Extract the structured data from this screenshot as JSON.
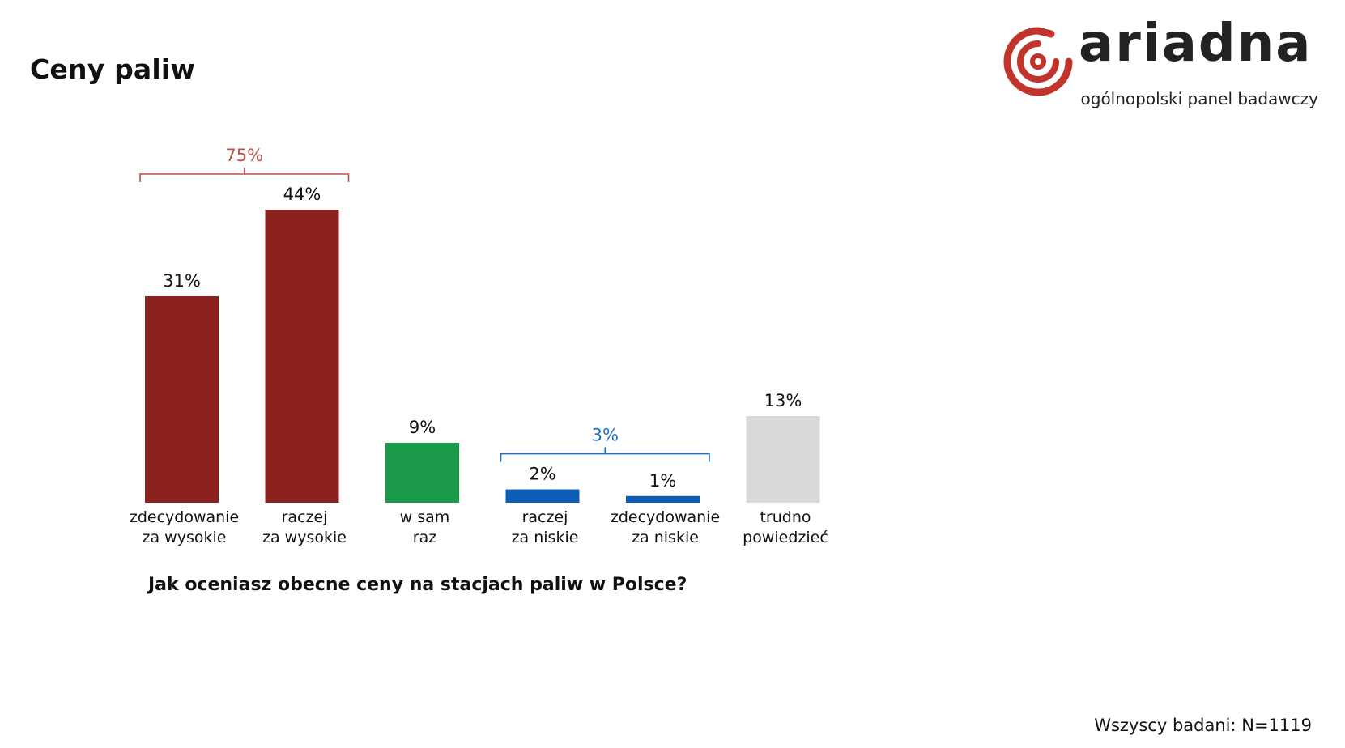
{
  "page": {
    "title": "Ceny paliw",
    "question": "Jak oceniasz obecne ceny na stacjach paliw w Polsce?",
    "sample_note": "Wszyscy badani: N=1119"
  },
  "logo": {
    "brand": "ariadna",
    "tagline": "ogólnopolski panel badawczy",
    "icon": "ariadna-spiral-logo-icon",
    "color": "#c0342b"
  },
  "chart_data": {
    "type": "bar",
    "categories": [
      [
        "zdecydowanie",
        "za wysokie"
      ],
      [
        "raczej",
        "za wysokie"
      ],
      [
        "w sam",
        "raz"
      ],
      [
        "raczej",
        "za niskie"
      ],
      [
        "zdecydowanie",
        "za niskie"
      ],
      [
        "trudno",
        "powiedzieć"
      ]
    ],
    "values": [
      31,
      44,
      9,
      2,
      1,
      13
    ],
    "value_labels": [
      "31%",
      "44%",
      "9%",
      "2%",
      "1%",
      "13%"
    ],
    "colors": [
      "#8b211c",
      "#8b211c",
      "#1a9a4a",
      "#0d5cb5",
      "#0d5cb5",
      "#d9d9d9"
    ],
    "ylim": [
      0,
      44
    ],
    "grid": false,
    "groups": [
      {
        "label": "75%",
        "from": 0,
        "to": 1,
        "color": "#c0504d"
      },
      {
        "label": "3%",
        "from": 3,
        "to": 4,
        "color": "#1f6fc5"
      }
    ]
  }
}
